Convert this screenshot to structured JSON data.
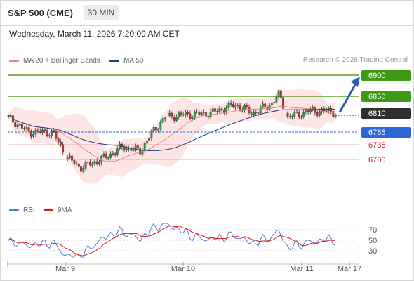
{
  "header": {
    "title": "S&P 500 (CME)",
    "timeframe": "30 MIN"
  },
  "datetime": "Wednesday, March 11, 2026 7:20:09 AM CET",
  "legend": {
    "ma20": {
      "label": "MA 20 + Bollinger Bands",
      "color": "#f08080"
    },
    "ma50": {
      "label": "MA 50",
      "color": "#1f3f7f"
    },
    "copyright": "Research © 2026 Trading Central"
  },
  "rsi_legend": {
    "rsi": {
      "label": "RSI",
      "color": "#4f7fd8"
    },
    "ma9": {
      "label": "9MA",
      "color": "#e0141e"
    }
  },
  "chart_data": [
    {
      "type": "candlestick",
      "title": "S&P 500 (CME)",
      "yrange": [
        6620,
        6920
      ],
      "x_ticks": [
        "Mar 9",
        "Mar 10",
        "Mar 11",
        "Mar 17"
      ],
      "levels": [
        {
          "value": 6900,
          "label": "6900",
          "style": "resistance"
        },
        {
          "value": 6850,
          "label": "6850",
          "style": "resistance"
        },
        {
          "value": 6810,
          "label": "6810",
          "style": "last"
        },
        {
          "value": 6765,
          "label": "6765",
          "style": "pivot"
        },
        {
          "value": 6735,
          "label": "6735",
          "style": "support"
        },
        {
          "value": 6700,
          "label": "6700",
          "style": "support"
        }
      ],
      "forecast": {
        "direction": "up",
        "target": 6900
      }
    },
    {
      "type": "line",
      "title": "RSI",
      "ylim": [
        10,
        90
      ],
      "y_ticks": [
        "70",
        "50",
        "30"
      ],
      "series": [
        {
          "name": "RSI"
        },
        {
          "name": "9MA"
        }
      ]
    }
  ]
}
